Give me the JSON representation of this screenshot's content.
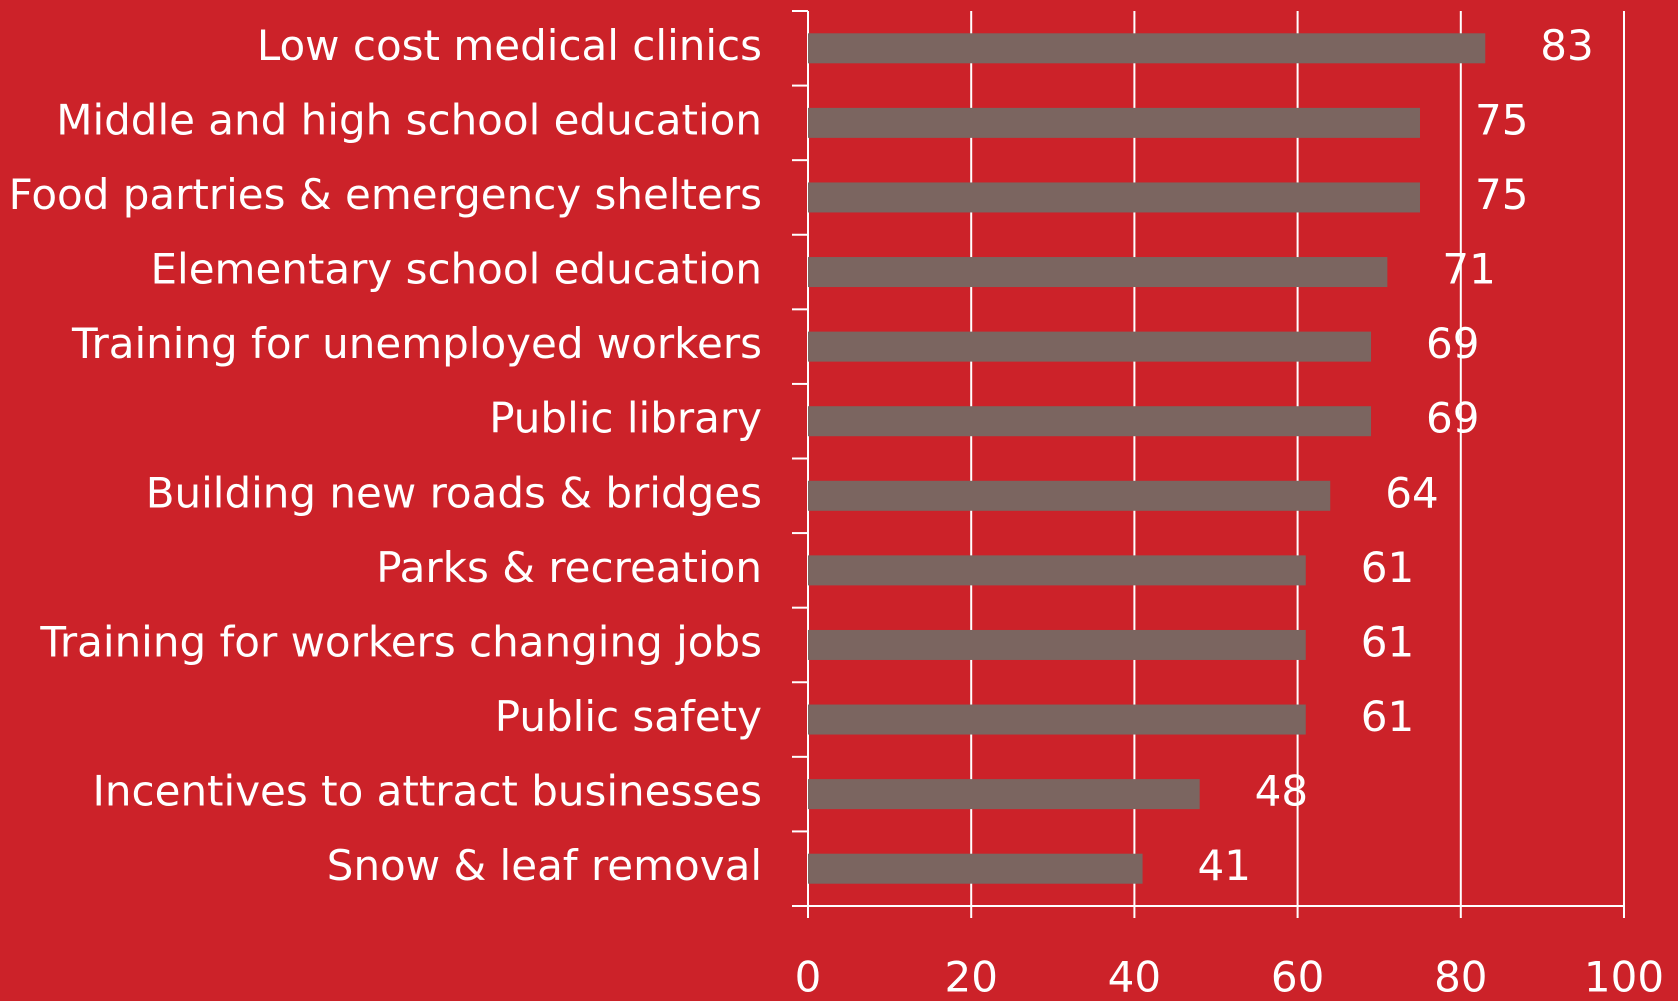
{
  "chart_data": {
    "type": "barh",
    "categories": [
      "Low cost medical clinics",
      "Middle and high school education",
      "Food partries & emergency shelters",
      "Elementary school education",
      "Training for unemployed workers",
      "Public library",
      "Building new roads & bridges",
      "Parks & recreation",
      "Training for workers changing jobs",
      "Public safety",
      "Incentives to attract businesses",
      "Snow & leaf removal"
    ],
    "values": [
      83,
      75,
      75,
      71,
      69,
      69,
      64,
      61,
      61,
      61,
      48,
      41
    ],
    "color": "#7b6560",
    "xlim": [
      0,
      100
    ],
    "xticks": [
      0,
      20,
      40,
      60,
      80,
      100
    ],
    "grid": true
  }
}
